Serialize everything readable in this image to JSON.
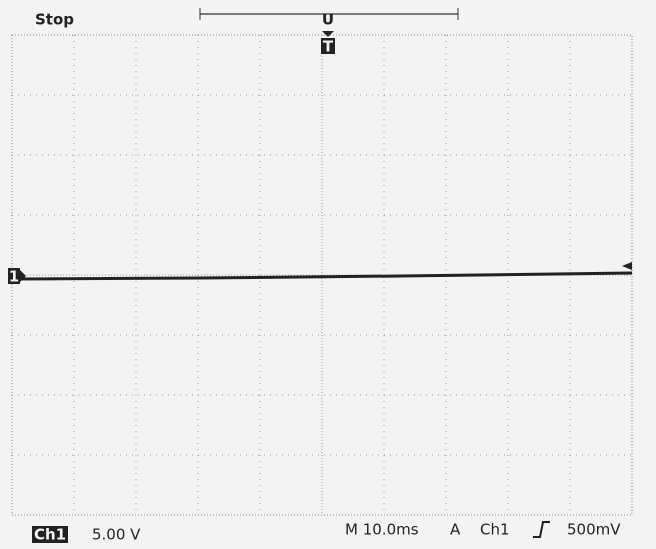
{
  "status": "Stop",
  "markers": {
    "record": "U",
    "trigger": "T",
    "channel": "1"
  },
  "readouts": {
    "channel": "Ch1",
    "scale": "5.00 V",
    "timebase": "M 10.0ms",
    "trigger_mode": "A",
    "trigger_source": "Ch1",
    "trigger_level": "500mV"
  }
}
